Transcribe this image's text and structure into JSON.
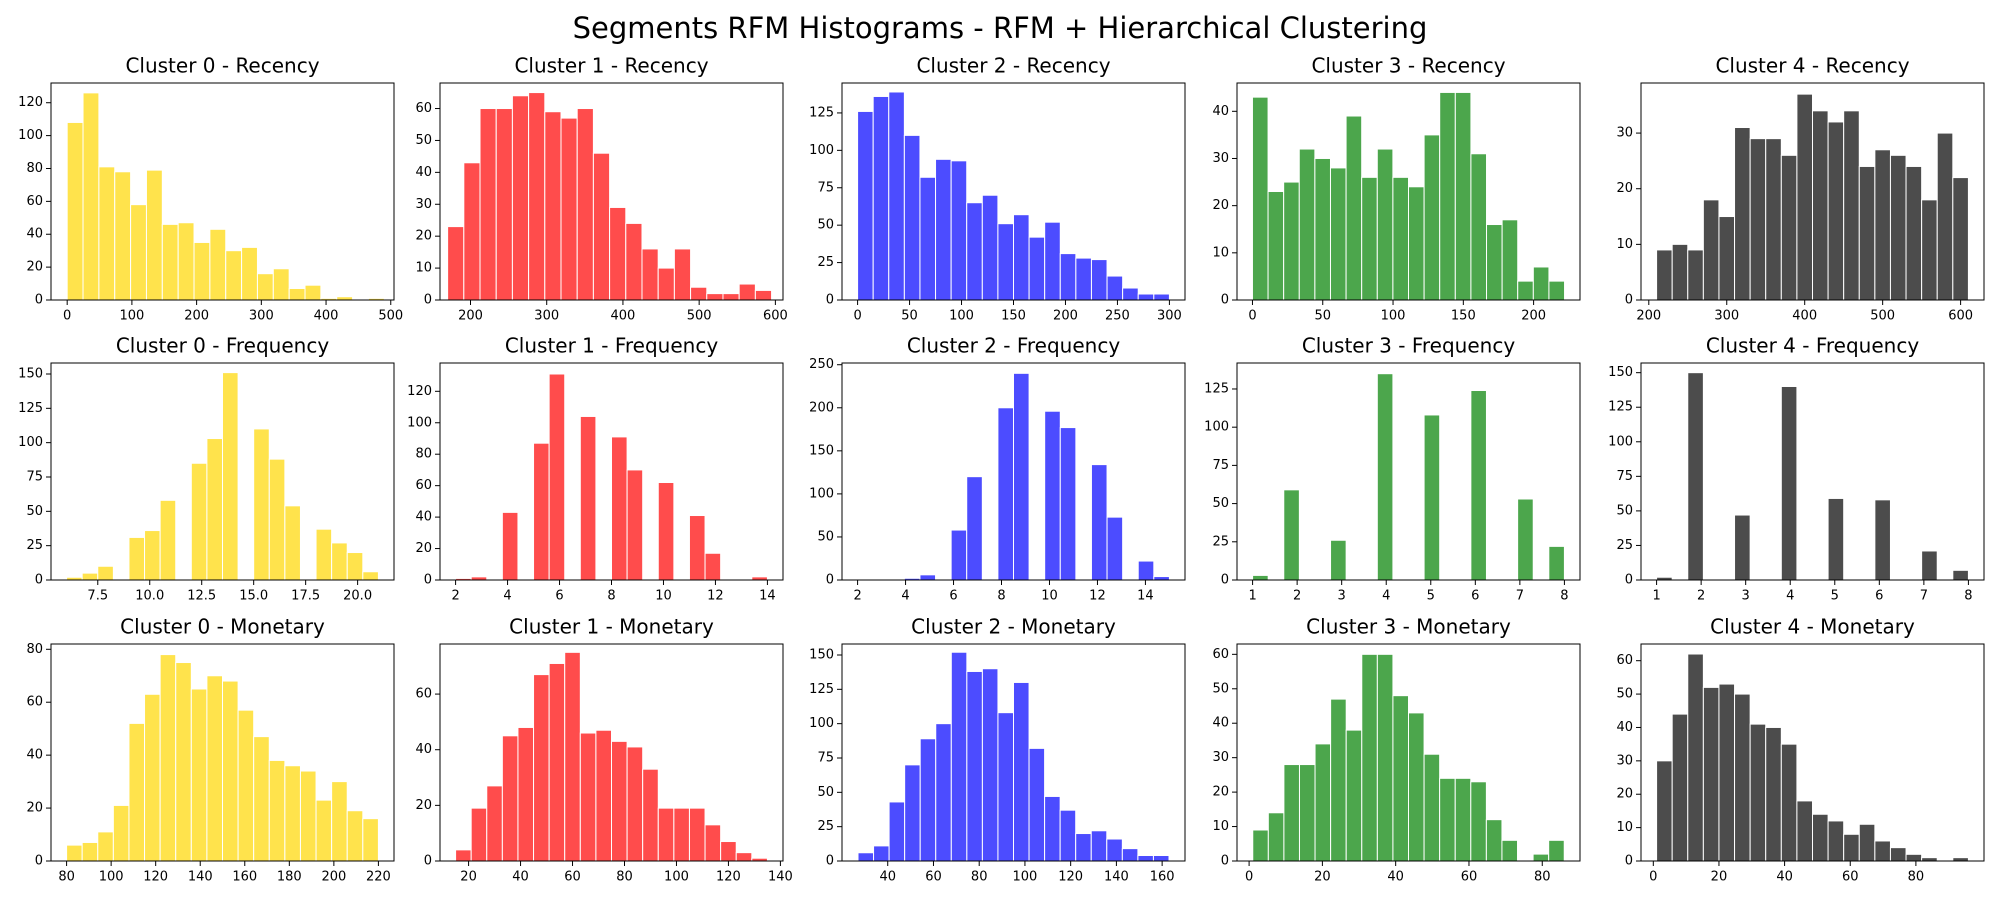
{
  "title": "Segments RFM Histograms - RFM + Hierarchical Clustering",
  "chart_data": [
    {
      "type": "histogram",
      "title": "Cluster 0 - Recency",
      "color": "gold",
      "bins": [
        0,
        24.5,
        49,
        73.5,
        98,
        122.5,
        147,
        171.5,
        196,
        220.5,
        245,
        269.5,
        294,
        318.5,
        343,
        367.5,
        392,
        416.5,
        441,
        465.5,
        490
      ],
      "counts": [
        108,
        126,
        81,
        78,
        58,
        79,
        46,
        47,
        35,
        43,
        30,
        32,
        16,
        19,
        7,
        9,
        1,
        2,
        0,
        1
      ],
      "xlim": [
        -25,
        505
      ],
      "xticks": [
        0,
        100,
        200,
        300,
        400,
        500
      ],
      "ylim": [
        0,
        132
      ],
      "yticks": [
        0,
        20,
        40,
        60,
        80,
        100,
        120
      ]
    },
    {
      "type": "histogram",
      "title": "Cluster 1 - Recency",
      "color": "red",
      "bins": [
        170,
        191.25,
        212.5,
        233.75,
        255,
        276.25,
        297.5,
        318.75,
        340,
        361.25,
        382.5,
        403.75,
        425,
        446.25,
        467.5,
        488.75,
        510,
        531.25,
        552.5,
        573.75,
        595
      ],
      "counts": [
        23,
        43,
        60,
        60,
        64,
        65,
        59,
        57,
        60,
        46,
        29,
        24,
        16,
        10,
        16,
        4,
        2,
        2,
        5,
        3
      ],
      "xlim": [
        160,
        610
      ],
      "xticks": [
        200,
        300,
        400,
        500,
        600
      ],
      "ylim": [
        0,
        68
      ],
      "yticks": [
        0,
        10,
        20,
        30,
        40,
        50,
        60
      ]
    },
    {
      "type": "histogram",
      "title": "Cluster 2 - Recency",
      "color": "blue",
      "bins": [
        0,
        15,
        30,
        45,
        60,
        75,
        90,
        105,
        120,
        135,
        150,
        165,
        180,
        195,
        210,
        225,
        240,
        255,
        270,
        285,
        300
      ],
      "counts": [
        126,
        136,
        139,
        110,
        82,
        94,
        93,
        65,
        70,
        51,
        57,
        42,
        52,
        31,
        28,
        27,
        16,
        8,
        4,
        4
      ],
      "xlim": [
        -15,
        315
      ],
      "xticks": [
        0,
        50,
        100,
        150,
        200,
        250,
        300
      ],
      "ylim": [
        0,
        145
      ],
      "yticks": [
        0,
        25,
        50,
        75,
        100,
        125
      ]
    },
    {
      "type": "histogram",
      "title": "Cluster 3 - Recency",
      "color": "green",
      "bins": [
        0,
        11.1,
        22.2,
        33.3,
        44.4,
        55.5,
        66.6,
        77.7,
        88.8,
        99.9,
        111,
        122.1,
        133.2,
        144.3,
        155.4,
        166.5,
        177.6,
        188.7,
        199.8,
        210.9,
        222
      ],
      "counts": [
        43,
        23,
        25,
        32,
        30,
        28,
        39,
        26,
        32,
        26,
        24,
        35,
        44,
        44,
        31,
        16,
        17,
        4,
        7,
        4
      ],
      "xlim": [
        -11,
        233
      ],
      "xticks": [
        0,
        50,
        100,
        150,
        200
      ],
      "ylim": [
        0,
        46
      ],
      "yticks": [
        0,
        10,
        20,
        30,
        40
      ]
    },
    {
      "type": "histogram",
      "title": "Cluster 4 - Recency",
      "color": "black",
      "bins": [
        210,
        230,
        250,
        270,
        290,
        310,
        330,
        350,
        370,
        390,
        410,
        430,
        450,
        470,
        490,
        510,
        530,
        550,
        570,
        590,
        610
      ],
      "counts": [
        9,
        10,
        9,
        18,
        15,
        31,
        29,
        29,
        26,
        37,
        34,
        32,
        34,
        24,
        27,
        26,
        24,
        18,
        30,
        22
      ],
      "xlim": [
        190,
        630
      ],
      "xticks": [
        200,
        300,
        400,
        500,
        600
      ],
      "ylim": [
        0,
        39
      ],
      "yticks": [
        0,
        10,
        20,
        30
      ]
    },
    {
      "type": "histogram",
      "title": "Cluster 0 - Frequency",
      "color": "gold",
      "bins": [
        6,
        6.75,
        7.5,
        8.25,
        9,
        9.75,
        10.5,
        11.25,
        12,
        12.75,
        13.5,
        14.25,
        15,
        15.75,
        16.5,
        17.25,
        18,
        18.75,
        19.5,
        20.25,
        21
      ],
      "counts": [
        2,
        5,
        10,
        0,
        31,
        36,
        58,
        0,
        85,
        103,
        151,
        0,
        110,
        88,
        54,
        0,
        37,
        27,
        20,
        6
      ],
      "xlim": [
        5.25,
        21.75
      ],
      "xticks": [
        7.5,
        {
          "value": 10,
          "label": "10.0"
        },
        12.5,
        {
          "value": 15,
          "label": "15.0"
        },
        17.5,
        {
          "value": 20,
          "label": "20.0"
        }
      ],
      "ylim": [
        0,
        158
      ],
      "yticks": [
        0,
        25,
        50,
        75,
        100,
        125,
        150
      ]
    },
    {
      "type": "histogram",
      "title": "Cluster 1 - Frequency",
      "color": "red",
      "bins": [
        2,
        2.6,
        3.2,
        3.8,
        4.4,
        5,
        5.6,
        6.2,
        6.8,
        7.4,
        8,
        8.6,
        9.2,
        9.8,
        10.4,
        11,
        11.6,
        12.2,
        12.8,
        13.4,
        14
      ],
      "counts": [
        1,
        2,
        0,
        43,
        0,
        87,
        131,
        0,
        104,
        0,
        91,
        70,
        0,
        62,
        0,
        41,
        17,
        0,
        0,
        2
      ],
      "xlim": [
        1.4,
        14.6
      ],
      "xticks": [
        2,
        4,
        6,
        8,
        10,
        12,
        14
      ],
      "ylim": [
        0,
        138
      ],
      "yticks": [
        0,
        20,
        40,
        60,
        80,
        100,
        120
      ]
    },
    {
      "type": "histogram",
      "title": "Cluster 2 - Frequency",
      "color": "blue",
      "bins": [
        2,
        2.65,
        3.3,
        3.95,
        4.6,
        5.25,
        5.9,
        6.55,
        7.2,
        7.85,
        8.5,
        9.15,
        9.8,
        10.45,
        11.1,
        11.75,
        12.4,
        13.05,
        13.7,
        14.35,
        15
      ],
      "counts": [
        1,
        1,
        0,
        2,
        6,
        0,
        58,
        120,
        0,
        200,
        240,
        0,
        196,
        177,
        0,
        134,
        73,
        0,
        22,
        4
      ],
      "xlim": [
        1.35,
        15.65
      ],
      "xticks": [
        2,
        4,
        6,
        8,
        10,
        12,
        14
      ],
      "ylim": [
        0,
        252
      ],
      "yticks": [
        0,
        50,
        100,
        150,
        200,
        250
      ]
    },
    {
      "type": "histogram",
      "title": "Cluster 3 - Frequency",
      "color": "green",
      "bins": [
        1,
        1.35,
        1.7,
        2.05,
        2.4,
        2.75,
        3.1,
        3.45,
        3.8,
        4.15,
        4.5,
        4.85,
        5.2,
        5.55,
        5.9,
        6.25,
        6.6,
        6.95,
        7.3,
        7.65,
        8
      ],
      "counts": [
        3,
        0,
        59,
        0,
        0,
        26,
        0,
        0,
        135,
        0,
        0,
        108,
        0,
        0,
        124,
        0,
        0,
        53,
        0,
        22
      ],
      "xlim": [
        0.65,
        8.35
      ],
      "xticks": [
        1,
        2,
        3,
        4,
        5,
        6,
        7,
        8
      ],
      "ylim": [
        0,
        142
      ],
      "yticks": [
        0,
        25,
        50,
        75,
        100,
        125
      ]
    },
    {
      "type": "histogram",
      "title": "Cluster 4 - Frequency",
      "color": "black",
      "bins": [
        1,
        1.35,
        1.7,
        2.05,
        2.4,
        2.75,
        3.1,
        3.45,
        3.8,
        4.15,
        4.5,
        4.85,
        5.2,
        5.55,
        5.9,
        6.25,
        6.6,
        6.95,
        7.3,
        7.65,
        8
      ],
      "counts": [
        2,
        0,
        150,
        0,
        0,
        47,
        0,
        0,
        140,
        0,
        0,
        59,
        0,
        0,
        58,
        0,
        0,
        21,
        0,
        7
      ],
      "xlim": [
        0.65,
        8.35
      ],
      "xticks": [
        1,
        2,
        3,
        4,
        5,
        6,
        7,
        8
      ],
      "ylim": [
        0,
        157
      ],
      "yticks": [
        0,
        25,
        50,
        75,
        100,
        125,
        150
      ]
    },
    {
      "type": "histogram",
      "title": "Cluster 0 - Monetary",
      "color": "gold",
      "bins": [
        80,
        87,
        94,
        101,
        108,
        115,
        122,
        129,
        136,
        143,
        150,
        157,
        164,
        171,
        178,
        185,
        192,
        199,
        206,
        213,
        220
      ],
      "counts": [
        6,
        7,
        11,
        21,
        52,
        63,
        78,
        75,
        65,
        70,
        68,
        57,
        47,
        38,
        36,
        34,
        23,
        30,
        19,
        16
      ],
      "xlim": [
        73,
        227
      ],
      "xticks": [
        80,
        100,
        120,
        140,
        160,
        180,
        200,
        220
      ],
      "ylim": [
        0,
        82
      ],
      "yticks": [
        0,
        20,
        40,
        60,
        80
      ]
    },
    {
      "type": "histogram",
      "title": "Cluster 1 - Monetary",
      "color": "red",
      "bins": [
        15,
        21,
        27,
        33,
        39,
        45,
        51,
        57,
        63,
        69,
        75,
        81,
        87,
        93,
        99,
        105,
        111,
        117,
        123,
        129,
        135
      ],
      "counts": [
        4,
        19,
        27,
        45,
        48,
        67,
        71,
        75,
        46,
        47,
        43,
        41,
        33,
        19,
        19,
        19,
        13,
        7,
        3,
        1
      ],
      "xlim": [
        9,
        141
      ],
      "xticks": [
        20,
        40,
        60,
        80,
        100,
        120,
        140
      ],
      "ylim": [
        0,
        78
      ],
      "yticks": [
        0,
        20,
        40,
        60
      ]
    },
    {
      "type": "histogram",
      "title": "Cluster 2 - Monetary",
      "color": "blue",
      "bins": [
        27,
        33.8,
        40.6,
        47.4,
        54.2,
        61,
        67.8,
        74.6,
        81.4,
        88.2,
        95,
        101.8,
        108.6,
        115.4,
        122.2,
        129,
        135.8,
        142.6,
        149.4,
        156.2,
        163
      ],
      "counts": [
        6,
        11,
        43,
        70,
        89,
        100,
        152,
        138,
        140,
        108,
        130,
        82,
        47,
        37,
        20,
        22,
        16,
        9,
        4,
        4
      ],
      "xlim": [
        20,
        170
      ],
      "xticks": [
        40,
        60,
        80,
        100,
        120,
        140,
        160
      ],
      "ylim": [
        0,
        158
      ],
      "yticks": [
        0,
        25,
        50,
        75,
        100,
        125,
        150
      ]
    },
    {
      "type": "histogram",
      "title": "Cluster 3 - Monetary",
      "color": "green",
      "bins": [
        1,
        5.25,
        9.5,
        13.75,
        18,
        22.25,
        26.5,
        30.75,
        35,
        39.25,
        43.5,
        47.75,
        52,
        56.25,
        60.5,
        64.75,
        69,
        73.25,
        77.5,
        81.75,
        86
      ],
      "counts": [
        9,
        14,
        28,
        28,
        34,
        47,
        38,
        60,
        60,
        48,
        43,
        31,
        24,
        24,
        23,
        12,
        6,
        0,
        2,
        6
      ],
      "xlim": [
        -3.3,
        90.3
      ],
      "xticks": [
        0,
        20,
        40,
        60,
        80
      ],
      "ylim": [
        0,
        63
      ],
      "yticks": [
        0,
        10,
        20,
        30,
        40,
        50,
        60
      ]
    },
    {
      "type": "histogram",
      "title": "Cluster 4 - Monetary",
      "color": "black",
      "bins": [
        1,
        5.75,
        10.5,
        15.25,
        20,
        24.75,
        29.5,
        34.25,
        39,
        43.75,
        48.5,
        53.25,
        58,
        62.75,
        67.5,
        72.25,
        77,
        81.75,
        86.5,
        91.25,
        96
      ],
      "counts": [
        30,
        44,
        62,
        52,
        53,
        50,
        41,
        40,
        35,
        18,
        14,
        12,
        8,
        11,
        6,
        4,
        2,
        1,
        0,
        1
      ],
      "xlim": [
        -3.75,
        100.75
      ],
      "xticks": [
        0,
        20,
        40,
        60,
        80
      ],
      "ylim": [
        0,
        65
      ],
      "yticks": [
        0,
        10,
        20,
        30,
        40,
        50,
        60
      ]
    }
  ]
}
